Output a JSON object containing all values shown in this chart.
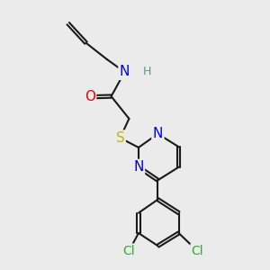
{
  "background_color": "#ebebeb",
  "bond_color": "#1a1a1a",
  "bond_lw": 1.5,
  "atom_colors": {
    "N": "#0000ee",
    "O": "#ee0000",
    "S": "#bbbb00",
    "Cl": "#33aa33",
    "H": "#5f9090",
    "C": "#1a1a1a"
  },
  "font_size": 10,
  "label_font_size": 9.5
}
